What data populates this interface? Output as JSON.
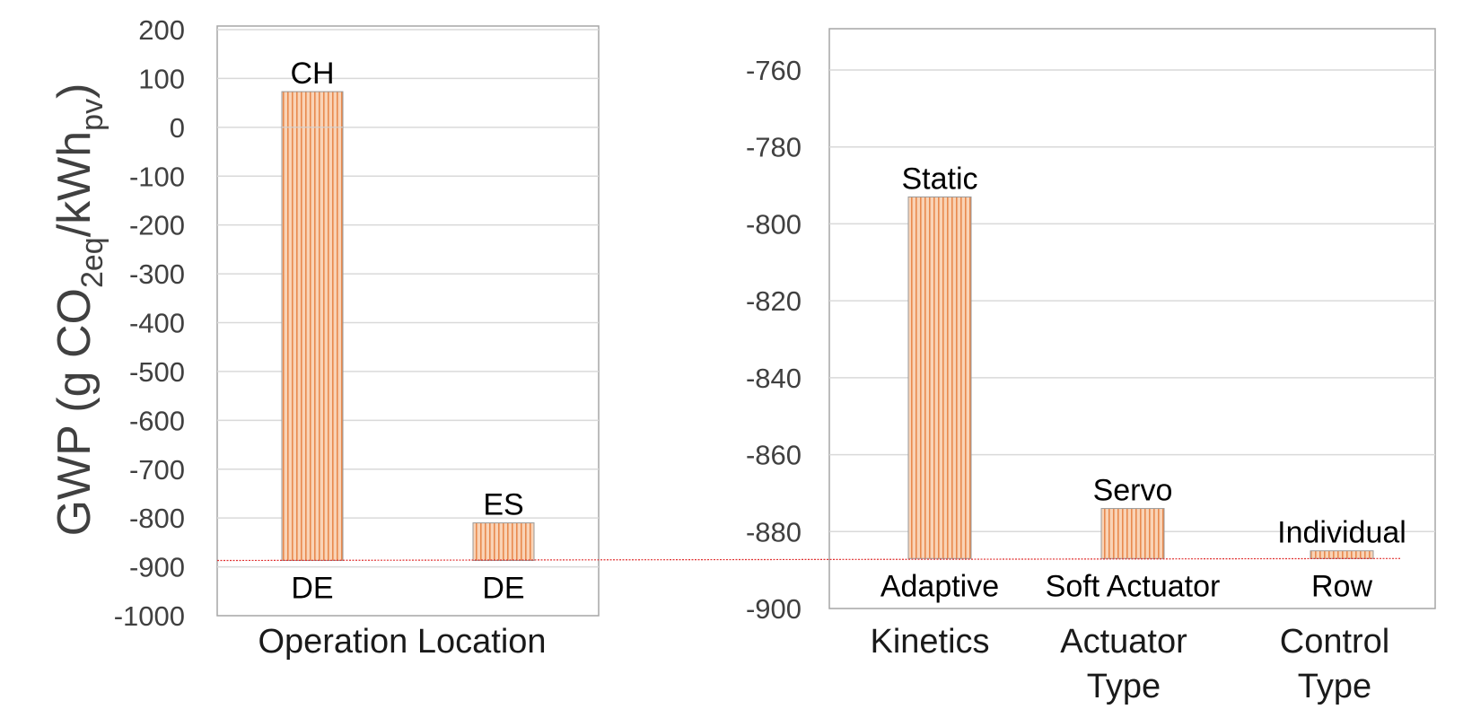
{
  "chart_data": [
    {
      "type": "bar",
      "ylabel": {
        "prefix": "GWP (g CO",
        "sub1": "2eq",
        "mid": "/kWh",
        "sub2": "pv",
        "suffix": ")"
      },
      "ylim": [
        -1000,
        200
      ],
      "yticks": [
        200,
        100,
        0,
        -100,
        -200,
        -300,
        -400,
        -500,
        -600,
        -700,
        -800,
        -900,
        -1000
      ],
      "grid": true,
      "xlabel": "Operation Location",
      "bars": [
        {
          "top_label": "CH",
          "bottom_label": "DE",
          "from": -887,
          "to": 73
        },
        {
          "top_label": "ES",
          "bottom_label": "DE",
          "from": -887,
          "to": -810
        }
      ]
    },
    {
      "type": "bar",
      "ylim": [
        -900,
        -750
      ],
      "yticks": [
        -760,
        -780,
        -800,
        -820,
        -840,
        -860,
        -880,
        -900
      ],
      "grid": true,
      "bars": [
        {
          "top_label": "Static",
          "bottom_label": "Adaptive",
          "from": -887,
          "to": -793
        },
        {
          "top_label": "Servo",
          "bottom_label": "Soft Actuator",
          "from": -887,
          "to": -874
        },
        {
          "top_label": "Individual",
          "bottom_label": "Row",
          "from": -887,
          "to": -885
        }
      ],
      "groups": [
        {
          "lines": [
            "Kinetics"
          ]
        },
        {
          "lines": [
            "Actuator",
            "Type"
          ]
        },
        {
          "lines": [
            "Control",
            "Type"
          ]
        }
      ]
    }
  ],
  "reference_line": {
    "value": -887,
    "color": "#e03030"
  },
  "colors": {
    "bar_fill": "#f7caa9",
    "bar_stripe": "#e98a4e",
    "bar_stroke": "#999999",
    "grid": "#d9d9d9",
    "frame": "#a6a6a6"
  }
}
